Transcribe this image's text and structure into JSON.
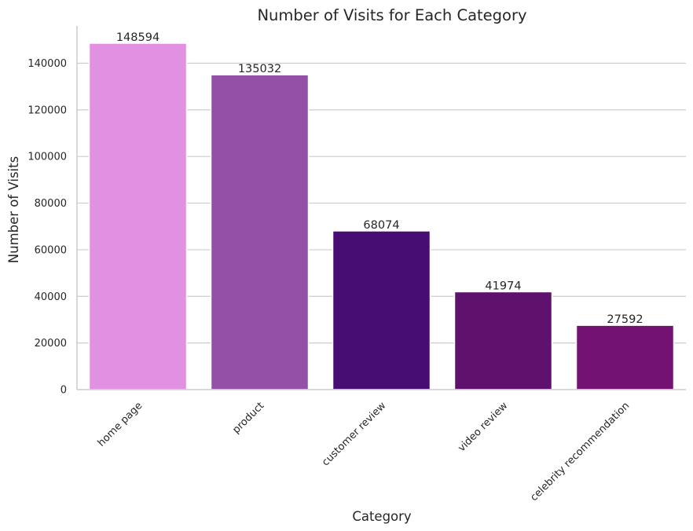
{
  "chart_data": {
    "type": "bar",
    "title": "Number of Visits for Each Category",
    "xlabel": "Category",
    "ylabel": "Number of Visits",
    "categories": [
      "home page",
      "product",
      "customer review",
      "video review",
      "celebrity recommendation"
    ],
    "values": [
      148594,
      135032,
      68074,
      41974,
      27592
    ],
    "value_labels": [
      "148594",
      "135032",
      "68074",
      "41974",
      "27592"
    ],
    "colors": [
      "#e190e2",
      "#9350a6",
      "#480d72",
      "#5e126e",
      "#731272"
    ],
    "ylim": [
      0,
      156000
    ],
    "yticks": [
      0,
      20000,
      40000,
      60000,
      80000,
      100000,
      120000,
      140000
    ],
    "ytick_labels": [
      "0",
      "20000",
      "40000",
      "60000",
      "80000",
      "100000",
      "120000",
      "140000"
    ],
    "grid": "horizontal",
    "grid_color": "#cccccc",
    "axis_color": "#cccccc",
    "text_color": "#262626"
  }
}
